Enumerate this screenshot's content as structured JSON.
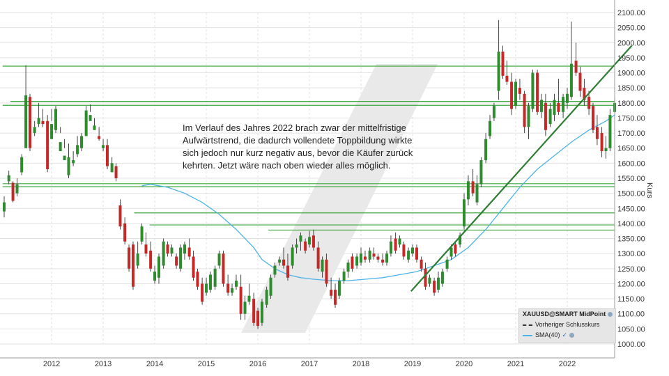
{
  "chart_data": {
    "type": "candlestick",
    "ylabel": "Kurs",
    "ylim": [
      1000,
      2100
    ],
    "yticks": [
      "2100.00",
      "2050.00",
      "2000.00",
      "1950.00",
      "1900.00",
      "1850.00",
      "1800.00",
      "1750.00",
      "1700.00",
      "1650.00",
      "1600.00",
      "1550.00",
      "1500.00",
      "1450.00",
      "1400.00",
      "1350.00",
      "1300.00",
      "1250.00",
      "1200.00",
      "1150.00",
      "1100.00",
      "1050.00",
      "1000.00"
    ],
    "xticks": [
      "2012",
      "2013",
      "2014",
      "2015",
      "2016",
      "2017",
      "2018",
      "2019",
      "2020",
      "2021",
      "2022"
    ],
    "x_range": [
      2011.1,
      2023.0
    ],
    "candles_monthly": [
      [
        2011.08,
        1420,
        1490,
        1440,
        1470
      ],
      [
        2011.17,
        1530,
        1575,
        1540,
        1560
      ],
      [
        2011.25,
        1470,
        1540,
        1535,
        1475
      ],
      [
        2011.33,
        1490,
        1550,
        1500,
        1530
      ],
      [
        2011.42,
        1560,
        1630,
        1570,
        1620
      ],
      [
        2011.5,
        1820,
        1925,
        1650,
        1825
      ],
      [
        2011.58,
        1640,
        1830,
        1820,
        1650
      ],
      [
        2011.67,
        1690,
        1740,
        1700,
        1720
      ],
      [
        2011.75,
        1720,
        1800,
        1730,
        1750
      ],
      [
        2011.83,
        1720,
        1780,
        1740,
        1730
      ],
      [
        2011.92,
        1570,
        1760,
        1740,
        1580
      ],
      [
        2012.0,
        1740,
        1780,
        1680,
        1730
      ],
      [
        2012.08,
        1700,
        1790,
        1710,
        1780
      ],
      [
        2012.17,
        1700,
        1720,
        1640,
        1670
      ],
      [
        2012.25,
        1650,
        1680,
        1610,
        1625
      ],
      [
        2012.33,
        1550,
        1665,
        1560,
        1620
      ],
      [
        2012.42,
        1590,
        1640,
        1600,
        1610
      ],
      [
        2012.5,
        1620,
        1690,
        1630,
        1660
      ],
      [
        2012.58,
        1640,
        1700,
        1650,
        1690
      ],
      [
        2012.67,
        1750,
        1790,
        1690,
        1775
      ],
      [
        2012.75,
        1770,
        1795,
        1740,
        1760
      ],
      [
        2012.83,
        1720,
        1750,
        1710,
        1725
      ],
      [
        2012.92,
        1675,
        1720,
        1690,
        1680
      ],
      [
        2013.0,
        1640,
        1680,
        1650,
        1660
      ],
      [
        2013.08,
        1580,
        1680,
        1660,
        1590
      ],
      [
        2013.17,
        1580,
        1620,
        1570,
        1600
      ],
      [
        2013.25,
        1540,
        1600,
        1590,
        1550
      ],
      [
        2013.33,
        1380,
        1480,
        1460,
        1390
      ],
      [
        2013.42,
        1330,
        1420,
        1400,
        1340
      ],
      [
        2013.5,
        1240,
        1330,
        1320,
        1250
      ],
      [
        2013.58,
        1180,
        1340,
        1330,
        1190
      ],
      [
        2013.67,
        1250,
        1340,
        1260,
        1300
      ],
      [
        2013.75,
        1330,
        1400,
        1340,
        1390
      ],
      [
        2013.83,
        1290,
        1370,
        1330,
        1300
      ],
      [
        2013.92,
        1240,
        1340,
        1310,
        1250
      ],
      [
        2014.0,
        1200,
        1260,
        1210,
        1240
      ],
      [
        2014.08,
        1200,
        1300,
        1220,
        1290
      ],
      [
        2014.17,
        1250,
        1350,
        1260,
        1340
      ],
      [
        2014.25,
        1290,
        1340,
        1330,
        1300
      ],
      [
        2014.33,
        1290,
        1330,
        1300,
        1320
      ],
      [
        2014.42,
        1250,
        1300,
        1290,
        1260
      ],
      [
        2014.5,
        1240,
        1330,
        1250,
        1320
      ],
      [
        2014.58,
        1280,
        1340,
        1300,
        1330
      ],
      [
        2014.67,
        1280,
        1350,
        1320,
        1290
      ],
      [
        2014.75,
        1210,
        1310,
        1290,
        1220
      ],
      [
        2014.83,
        1180,
        1250,
        1240,
        1190
      ],
      [
        2014.92,
        1130,
        1220,
        1200,
        1140
      ],
      [
        2015.0,
        1160,
        1220,
        1170,
        1200
      ],
      [
        2015.08,
        1170,
        1240,
        1180,
        1230
      ],
      [
        2015.17,
        1180,
        1260,
        1190,
        1250
      ],
      [
        2015.25,
        1250,
        1310,
        1260,
        1300
      ],
      [
        2015.33,
        1190,
        1310,
        1300,
        1200
      ],
      [
        2015.42,
        1160,
        1230,
        1200,
        1170
      ],
      [
        2015.5,
        1160,
        1200,
        1170,
        1185
      ],
      [
        2015.58,
        1180,
        1230,
        1190,
        1210
      ],
      [
        2015.67,
        1080,
        1230,
        1190,
        1100
      ],
      [
        2015.75,
        1080,
        1160,
        1100,
        1140
      ],
      [
        2015.83,
        1130,
        1200,
        1140,
        1160
      ],
      [
        2015.92,
        1060,
        1170,
        1150,
        1070
      ],
      [
        2016.0,
        1050,
        1120,
        1110,
        1060
      ],
      [
        2016.08,
        1060,
        1150,
        1070,
        1140
      ],
      [
        2016.17,
        1120,
        1190,
        1130,
        1180
      ],
      [
        2016.25,
        1150,
        1230,
        1160,
        1220
      ],
      [
        2016.33,
        1220,
        1270,
        1230,
        1260
      ],
      [
        2016.42,
        1260,
        1290,
        1270,
        1280
      ],
      [
        2016.5,
        1250,
        1320,
        1280,
        1260
      ],
      [
        2016.58,
        1210,
        1300,
        1260,
        1220
      ],
      [
        2016.67,
        1250,
        1330,
        1260,
        1320
      ],
      [
        2016.75,
        1300,
        1350,
        1320,
        1330
      ],
      [
        2016.83,
        1310,
        1370,
        1340,
        1360
      ],
      [
        2016.92,
        1300,
        1350,
        1340,
        1310
      ],
      [
        2017.0,
        1320,
        1375,
        1330,
        1355
      ],
      [
        2017.08,
        1310,
        1380,
        1360,
        1320
      ],
      [
        2017.17,
        1240,
        1340,
        1320,
        1250
      ],
      [
        2017.25,
        1220,
        1290,
        1240,
        1280
      ],
      [
        2017.33,
        1190,
        1300,
        1280,
        1200
      ],
      [
        2017.42,
        1150,
        1220,
        1180,
        1160
      ],
      [
        2017.5,
        1120,
        1200,
        1180,
        1130
      ],
      [
        2017.58,
        1150,
        1220,
        1160,
        1210
      ],
      [
        2017.67,
        1200,
        1250,
        1210,
        1240
      ],
      [
        2017.75,
        1220,
        1280,
        1240,
        1270
      ],
      [
        2017.83,
        1240,
        1300,
        1290,
        1250
      ],
      [
        2017.92,
        1250,
        1300,
        1260,
        1290
      ],
      [
        2018.0,
        1260,
        1320,
        1270,
        1300
      ],
      [
        2018.08,
        1270,
        1310,
        1290,
        1280
      ],
      [
        2018.17,
        1270,
        1320,
        1280,
        1310
      ],
      [
        2018.25,
        1280,
        1320,
        1300,
        1290
      ],
      [
        2018.33,
        1270,
        1300,
        1290,
        1280
      ],
      [
        2018.42,
        1260,
        1300,
        1280,
        1270
      ],
      [
        2018.5,
        1260,
        1310,
        1270,
        1300
      ],
      [
        2018.58,
        1290,
        1360,
        1300,
        1340
      ],
      [
        2018.67,
        1300,
        1370,
        1350,
        1310
      ],
      [
        2018.75,
        1320,
        1360,
        1330,
        1350
      ],
      [
        2018.83,
        1280,
        1340,
        1330,
        1290
      ],
      [
        2018.92,
        1270,
        1320,
        1280,
        1310
      ],
      [
        2019.0,
        1290,
        1330,
        1300,
        1320
      ],
      [
        2019.08,
        1270,
        1330,
        1320,
        1280
      ],
      [
        2019.17,
        1240,
        1290,
        1280,
        1250
      ],
      [
        2019.25,
        1180,
        1270,
        1250,
        1190
      ],
      [
        2019.33,
        1190,
        1230,
        1200,
        1220
      ],
      [
        2019.42,
        1160,
        1220,
        1210,
        1170
      ],
      [
        2019.5,
        1170,
        1240,
        1180,
        1220
      ],
      [
        2019.58,
        1190,
        1250,
        1200,
        1240
      ],
      [
        2019.67,
        1240,
        1290,
        1250,
        1280
      ],
      [
        2019.75,
        1280,
        1330,
        1290,
        1320
      ],
      [
        2019.83,
        1290,
        1340,
        1330,
        1300
      ],
      [
        2019.92,
        1320,
        1370,
        1330,
        1360
      ],
      [
        2020.0,
        1380,
        1500,
        1390,
        1480
      ],
      [
        2020.08,
        1460,
        1560,
        1480,
        1540
      ],
      [
        2020.17,
        1490,
        1580,
        1540,
        1500
      ],
      [
        2020.25,
        1460,
        1560,
        1470,
        1530
      ],
      [
        2020.33,
        1520,
        1620,
        1530,
        1610
      ],
      [
        2020.42,
        1600,
        1700,
        1610,
        1680
      ],
      [
        2020.5,
        1680,
        1760,
        1690,
        1740
      ],
      [
        2020.58,
        1740,
        1800,
        1750,
        1790
      ],
      [
        2020.67,
        1810,
        2075,
        1840,
        1970
      ],
      [
        2020.75,
        1880,
        1990,
        1970,
        1890
      ],
      [
        2020.83,
        1860,
        1940,
        1890,
        1870
      ],
      [
        2020.92,
        1760,
        1900,
        1870,
        1780
      ],
      [
        2021.0,
        1780,
        1880,
        1790,
        1870
      ],
      [
        2021.08,
        1810,
        1880,
        1850,
        1830
      ],
      [
        2021.17,
        1700,
        1840,
        1830,
        1720
      ],
      [
        2021.25,
        1680,
        1800,
        1720,
        1790
      ],
      [
        2021.33,
        1770,
        1910,
        1780,
        1900
      ],
      [
        2021.42,
        1760,
        1910,
        1900,
        1770
      ],
      [
        2021.5,
        1750,
        1830,
        1770,
        1810
      ],
      [
        2021.58,
        1690,
        1830,
        1800,
        1710
      ],
      [
        2021.67,
        1720,
        1800,
        1730,
        1780
      ],
      [
        2021.75,
        1740,
        1830,
        1760,
        1810
      ],
      [
        2021.83,
        1760,
        1880,
        1800,
        1770
      ],
      [
        2021.92,
        1750,
        1830,
        1770,
        1820
      ],
      [
        2022.0,
        1780,
        1850,
        1800,
        1830
      ],
      [
        2022.08,
        1810,
        2070,
        1820,
        1930
      ],
      [
        2022.17,
        1890,
        2000,
        1940,
        1900
      ],
      [
        2022.25,
        1820,
        1920,
        1900,
        1840
      ],
      [
        2022.33,
        1790,
        1880,
        1850,
        1810
      ],
      [
        2022.42,
        1760,
        1840,
        1820,
        1780
      ],
      [
        2022.5,
        1700,
        1800,
        1790,
        1710
      ],
      [
        2022.58,
        1660,
        1760,
        1720,
        1680
      ],
      [
        2022.67,
        1620,
        1720,
        1700,
        1640
      ],
      [
        2022.75,
        1615,
        1690,
        1640,
        1650
      ],
      [
        2022.83,
        1640,
        1780,
        1650,
        1760
      ],
      [
        2022.92,
        1760,
        1820,
        1770,
        1800
      ]
    ],
    "sma40": [
      [
        2013.75,
        1525
      ],
      [
        2013.92,
        1530
      ],
      [
        2014.25,
        1520
      ],
      [
        2014.58,
        1500
      ],
      [
        2014.92,
        1470
      ],
      [
        2015.25,
        1430
      ],
      [
        2015.58,
        1380
      ],
      [
        2015.92,
        1320
      ],
      [
        2016.08,
        1280
      ],
      [
        2016.33,
        1250
      ],
      [
        2016.58,
        1230
      ],
      [
        2016.83,
        1220
      ],
      [
        2017.08,
        1215
      ],
      [
        2017.42,
        1210
      ],
      [
        2017.75,
        1210
      ],
      [
        2018.08,
        1215
      ],
      [
        2018.42,
        1220
      ],
      [
        2018.75,
        1230
      ],
      [
        2019.08,
        1240
      ],
      [
        2019.42,
        1260
      ],
      [
        2019.75,
        1280
      ],
      [
        2020.08,
        1320
      ],
      [
        2020.42,
        1380
      ],
      [
        2020.75,
        1450
      ],
      [
        2021.08,
        1520
      ],
      [
        2021.42,
        1580
      ],
      [
        2021.75,
        1625
      ],
      [
        2022.08,
        1670
      ],
      [
        2022.42,
        1710
      ],
      [
        2022.75,
        1740
      ],
      [
        2022.92,
        1760
      ]
    ],
    "horizontal_lines": [
      {
        "value": 1922,
        "x0": 2011.05,
        "x1": 2023.0
      },
      {
        "value": 1805,
        "x0": 2011.2,
        "x1": 2023.0
      },
      {
        "value": 1792,
        "x0": 2011.05,
        "x1": 2023.0
      },
      {
        "value": 1532,
        "x0": 2011.05,
        "x1": 2023.0
      },
      {
        "value": 1522,
        "x0": 2011.05,
        "x1": 2023.0
      },
      {
        "value": 1435,
        "x0": 2013.6,
        "x1": 2023.0
      },
      {
        "value": 1395,
        "x0": 2013.9,
        "x1": 2023.0
      },
      {
        "value": 1378,
        "x0": 2016.2,
        "x1": 2023.0
      }
    ],
    "trendline": {
      "x0": 2018.97,
      "y0": 1175,
      "x1": 2023.25,
      "y1": 1990
    },
    "colors": {
      "up": "#2e8b2e",
      "down": "#c62828",
      "sma": "#4db3e6",
      "level": "#3aa63a",
      "trend": "#2e7d32",
      "grid": "#e2e2e2"
    }
  },
  "annotation": {
    "lines": [
      "Im Verlauf des Jahres 2022 brach zwar der mittelfristige",
      "Aufwärtstrend, die dadurch vollendete Toppbildung wirkte",
      "sich jedoch nur kurz negativ aus, bevor die Käufer zurück",
      "kehrten. Jetzt wäre nach oben wieder alles möglich."
    ]
  },
  "legend": {
    "title": "XAUUSD@SMART MidPoint",
    "items": [
      "Vorheriger Schlusskurs",
      "SMA(40)"
    ]
  }
}
